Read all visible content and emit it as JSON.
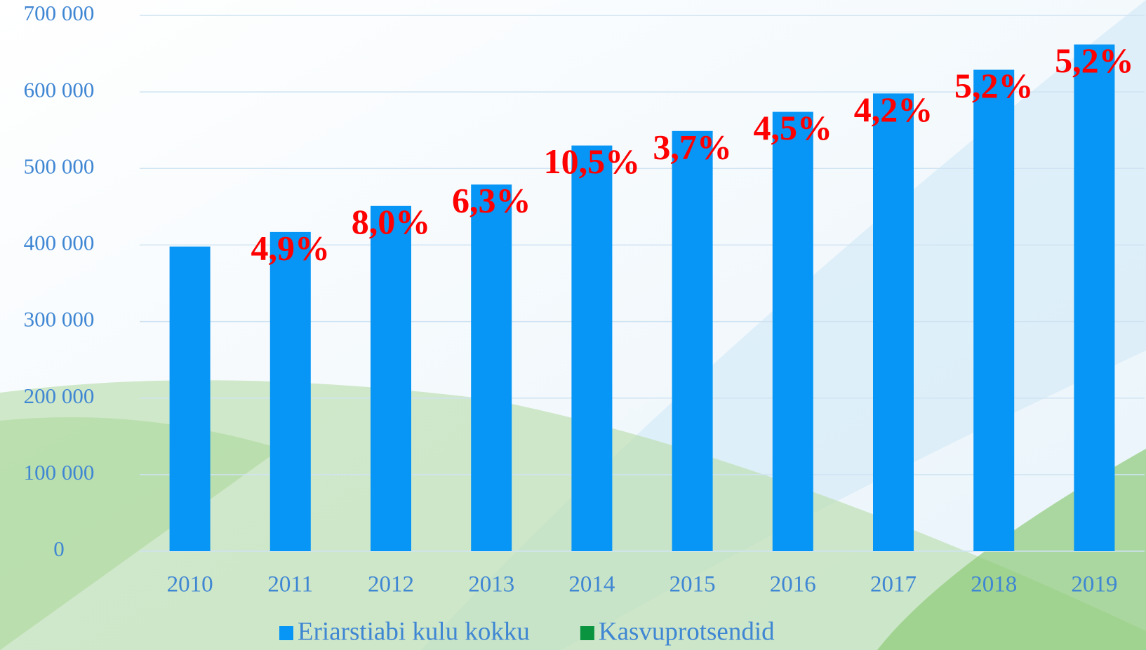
{
  "chart_data": {
    "type": "bar",
    "categories": [
      "2010",
      "2011",
      "2012",
      "2013",
      "2014",
      "2015",
      "2016",
      "2017",
      "2018",
      "2019"
    ],
    "series": [
      {
        "name": "Eriarstiabi kulu kokku",
        "color": "#0796f5",
        "values": [
          398000,
          417000,
          451000,
          479000,
          530000,
          549000,
          574000,
          598000,
          629000,
          662000
        ]
      },
      {
        "name": "Kasvuprotsendid",
        "color": "#0a9440",
        "values": [
          null,
          4.9,
          8.0,
          6.3,
          10.5,
          3.7,
          4.5,
          4.2,
          5.2,
          5.2
        ],
        "value_labels": [
          null,
          "4,9%",
          "8,0%",
          "6,3%",
          "10,5%",
          "3,7%",
          "4,5%",
          "4,2%",
          "5,2%",
          "5,2%"
        ],
        "label_color": "#ff0000"
      }
    ],
    "ylim": [
      0,
      700000
    ],
    "yticks": [
      0,
      {
        "value": 100000,
        "label": "100 000"
      },
      {
        "value": 200000,
        "label": "200 000"
      },
      {
        "value": 300000,
        "label": "300 000"
      },
      {
        "value": 400000,
        "label": "400 000"
      },
      {
        "value": 500000,
        "label": "500 000"
      },
      {
        "value": 600000,
        "label": "600 000"
      },
      {
        "value": 700000,
        "label": "700 000"
      }
    ],
    "grid": true,
    "legend": "bottom"
  }
}
